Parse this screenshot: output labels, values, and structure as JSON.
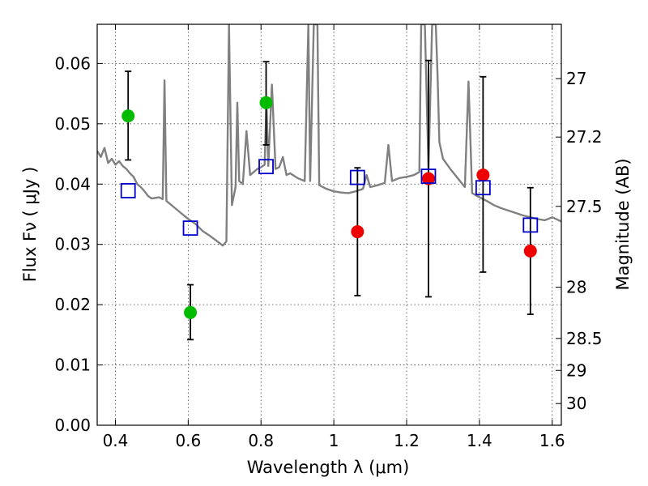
{
  "chart_data": {
    "type": "scatter",
    "xlabel": "Wavelength  λ (μm)",
    "ylabel": "Flux  Fν  ( μJy )",
    "y2label": "Magnitude (AB)",
    "xlim": [
      0.35,
      1.625
    ],
    "ylim": [
      0.0,
      0.0665
    ],
    "x_ticks": [
      "0.4",
      "0.6",
      "0.8",
      "1",
      "1.2",
      "1.4",
      "1.6"
    ],
    "x_tick_values": [
      0.4,
      0.6,
      0.8,
      1.0,
      1.2,
      1.4,
      1.6
    ],
    "y_ticks": [
      "0.00",
      "0.01",
      "0.02",
      "0.03",
      "0.04",
      "0.05",
      "0.06"
    ],
    "y_tick_values": [
      0.0,
      0.01,
      0.02,
      0.03,
      0.04,
      0.05,
      0.06
    ],
    "y2_ticks": [
      {
        "label": "27",
        "flux": 0.0575
      },
      {
        "label": "27.2",
        "flux": 0.0478
      },
      {
        "label": "27.5",
        "flux": 0.0363
      },
      {
        "label": "28",
        "flux": 0.0229
      },
      {
        "label": "28.5",
        "flux": 0.0144
      },
      {
        "label": "29",
        "flux": 0.0091
      },
      {
        "label": "30",
        "flux": 0.0036
      }
    ],
    "grid": true,
    "colors": {
      "detection_optical": "#00bb00",
      "detection_nir": "#ee0000",
      "model": "#0000cc",
      "spectrum": "#808080",
      "errorbar": "#000000"
    },
    "series": [
      {
        "marker": "circle",
        "color": "#00bb00",
        "points": [
          {
            "x": 0.435,
            "y": 0.0513,
            "ylo": 0.044,
            "yhi": 0.0587
          },
          {
            "x": 0.606,
            "y": 0.0187,
            "ylo": 0.0142,
            "yhi": 0.0233
          },
          {
            "x": 0.814,
            "y": 0.0535,
            "ylo": 0.0465,
            "yhi": 0.0603
          }
        ]
      },
      {
        "marker": "circle",
        "color": "#ee0000",
        "points": [
          {
            "x": 1.065,
            "y": 0.0321,
            "ylo": 0.0215,
            "yhi": 0.0427
          },
          {
            "x": 1.26,
            "y": 0.0409,
            "ylo": 0.0213,
            "yhi": 0.0605
          },
          {
            "x": 1.41,
            "y": 0.0415,
            "ylo": 0.0254,
            "yhi": 0.0578
          },
          {
            "x": 1.54,
            "y": 0.0289,
            "ylo": 0.0184,
            "yhi": 0.0394
          }
        ]
      },
      {
        "marker": "square",
        "color": "#0000cc",
        "points": [
          {
            "x": 0.435,
            "y": 0.0389
          },
          {
            "x": 0.606,
            "y": 0.0327
          },
          {
            "x": 0.814,
            "y": 0.0429
          },
          {
            "x": 1.065,
            "y": 0.0411
          },
          {
            "x": 1.26,
            "y": 0.0413
          },
          {
            "x": 1.41,
            "y": 0.0394
          },
          {
            "x": 1.54,
            "y": 0.0332
          }
        ]
      },
      {
        "marker": "line",
        "color": "#808080",
        "points": [
          [
            0.35,
            0.0455
          ],
          [
            0.36,
            0.0445
          ],
          [
            0.37,
            0.046
          ],
          [
            0.38,
            0.0435
          ],
          [
            0.39,
            0.0442
          ],
          [
            0.4,
            0.0432
          ],
          [
            0.41,
            0.0438
          ],
          [
            0.42,
            0.043
          ],
          [
            0.43,
            0.0425
          ],
          [
            0.44,
            0.0418
          ],
          [
            0.45,
            0.0412
          ],
          [
            0.46,
            0.04
          ],
          [
            0.47,
            0.0395
          ],
          [
            0.48,
            0.0388
          ],
          [
            0.49,
            0.038
          ],
          [
            0.5,
            0.0376
          ],
          [
            0.52,
            0.0378
          ],
          [
            0.53,
            0.0375
          ],
          [
            0.535,
            0.0572
          ],
          [
            0.54,
            0.0372
          ],
          [
            0.56,
            0.0362
          ],
          [
            0.58,
            0.0352
          ],
          [
            0.6,
            0.0342
          ],
          [
            0.62,
            0.0334
          ],
          [
            0.64,
            0.0322
          ],
          [
            0.66,
            0.0314
          ],
          [
            0.68,
            0.0305
          ],
          [
            0.695,
            0.0298
          ],
          [
            0.705,
            0.0305
          ],
          [
            0.712,
            0.0665
          ],
          [
            0.72,
            0.0365
          ],
          [
            0.73,
            0.0395
          ],
          [
            0.735,
            0.0535
          ],
          [
            0.74,
            0.0405
          ],
          [
            0.75,
            0.04
          ],
          [
            0.76,
            0.0488
          ],
          [
            0.77,
            0.0415
          ],
          [
            0.78,
            0.042
          ],
          [
            0.79,
            0.0425
          ],
          [
            0.8,
            0.0428
          ],
          [
            0.81,
            0.0432
          ],
          [
            0.815,
            0.0538
          ],
          [
            0.82,
            0.043
          ],
          [
            0.83,
            0.0565
          ],
          [
            0.84,
            0.0425
          ],
          [
            0.85,
            0.0428
          ],
          [
            0.86,
            0.0445
          ],
          [
            0.87,
            0.0415
          ],
          [
            0.88,
            0.0418
          ],
          [
            0.9,
            0.041
          ],
          [
            0.92,
            0.0405
          ],
          [
            0.93,
            0.0665
          ],
          [
            0.935,
            0.0405
          ],
          [
            0.945,
            0.0665
          ],
          [
            0.955,
            0.0665
          ],
          [
            0.96,
            0.0398
          ],
          [
            0.98,
            0.0392
          ],
          [
            1.0,
            0.0388
          ],
          [
            1.02,
            0.0386
          ],
          [
            1.04,
            0.0385
          ],
          [
            1.06,
            0.0388
          ],
          [
            1.08,
            0.0392
          ],
          [
            1.09,
            0.0415
          ],
          [
            1.1,
            0.0395
          ],
          [
            1.12,
            0.0398
          ],
          [
            1.14,
            0.0402
          ],
          [
            1.15,
            0.0465
          ],
          [
            1.16,
            0.0405
          ],
          [
            1.18,
            0.041
          ],
          [
            1.2,
            0.0412
          ],
          [
            1.22,
            0.0415
          ],
          [
            1.235,
            0.042
          ],
          [
            1.24,
            0.0665
          ],
          [
            1.25,
            0.0665
          ],
          [
            1.26,
            0.0425
          ],
          [
            1.27,
            0.0665
          ],
          [
            1.28,
            0.0665
          ],
          [
            1.285,
            0.058
          ],
          [
            1.29,
            0.047
          ],
          [
            1.3,
            0.0442
          ],
          [
            1.32,
            0.0425
          ],
          [
            1.34,
            0.041
          ],
          [
            1.36,
            0.0395
          ],
          [
            1.37,
            0.057
          ],
          [
            1.38,
            0.0385
          ],
          [
            1.4,
            0.0378
          ],
          [
            1.42,
            0.0372
          ],
          [
            1.44,
            0.0365
          ],
          [
            1.46,
            0.036
          ],
          [
            1.48,
            0.0356
          ],
          [
            1.5,
            0.0352
          ],
          [
            1.52,
            0.0348
          ],
          [
            1.54,
            0.0345
          ],
          [
            1.56,
            0.0342
          ],
          [
            1.58,
            0.034
          ],
          [
            1.6,
            0.0345
          ],
          [
            1.625,
            0.0338
          ]
        ]
      }
    ]
  }
}
